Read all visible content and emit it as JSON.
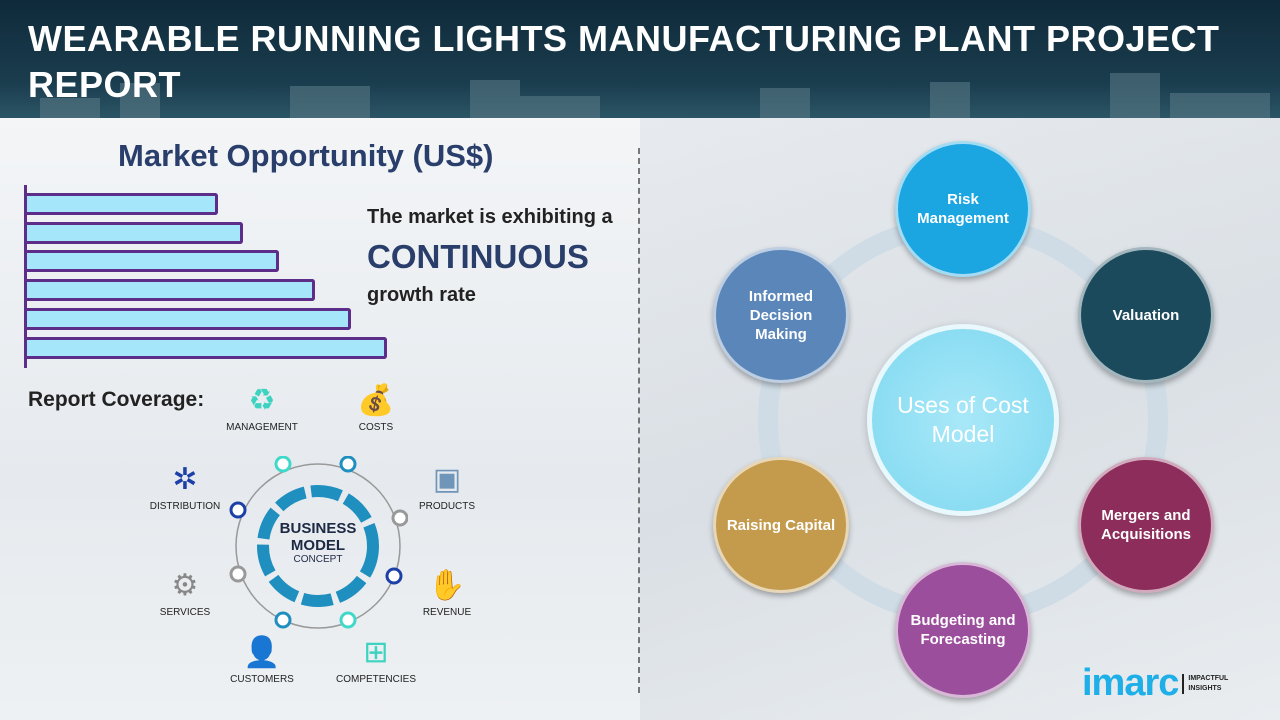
{
  "header": {
    "title": "WEARABLE RUNNING LIGHTS MANUFACTURING PLANT PROJECT REPORT"
  },
  "market": {
    "title": "Market Opportunity (US$)",
    "bars_relative": [
      0.53,
      0.6,
      0.7,
      0.8,
      0.9,
      1.0
    ],
    "bar_fill": "#a5e6fb",
    "bar_border": "#5d2d8a",
    "line1": "The market is exhibiting a",
    "highlight": "CONTINUOUS",
    "line3": "growth rate"
  },
  "coverage": {
    "label": "Report Coverage:",
    "center_line1": "BUSINESS",
    "center_line2": "MODEL",
    "center_line3": "CONCEPT",
    "items": [
      {
        "label": "MANAGEMENT",
        "icon": "lightbulb-cycle-icon"
      },
      {
        "label": "COSTS",
        "icon": "money-bag-icon"
      },
      {
        "label": "DISTRIBUTION",
        "icon": "network-icon"
      },
      {
        "label": "PRODUCTS",
        "icon": "box-icon"
      },
      {
        "label": "SERVICES",
        "icon": "gears-icon"
      },
      {
        "label": "REVENUE",
        "icon": "hand-coins-icon"
      },
      {
        "label": "CUSTOMERS",
        "icon": "user-icon"
      },
      {
        "label": "COMPETENCIES",
        "icon": "org-chart-icon"
      }
    ]
  },
  "cost_model": {
    "center": "Uses of Cost Model",
    "items": [
      {
        "label": "Risk Management",
        "color": "#1ba6e2"
      },
      {
        "label": "Valuation",
        "color": "#1b4a5c"
      },
      {
        "label": "Mergers and Acquisitions",
        "color": "#8c2d5b"
      },
      {
        "label": "Budgeting and Forecasting",
        "color": "#9b4e9b"
      },
      {
        "label": "Raising Capital",
        "color": "#c49b4c"
      },
      {
        "label": "Informed Decision Making",
        "color": "#5a86b9"
      }
    ]
  },
  "logo": {
    "word": "imarc",
    "tagline": "IMPACTFUL INSIGHTS"
  }
}
